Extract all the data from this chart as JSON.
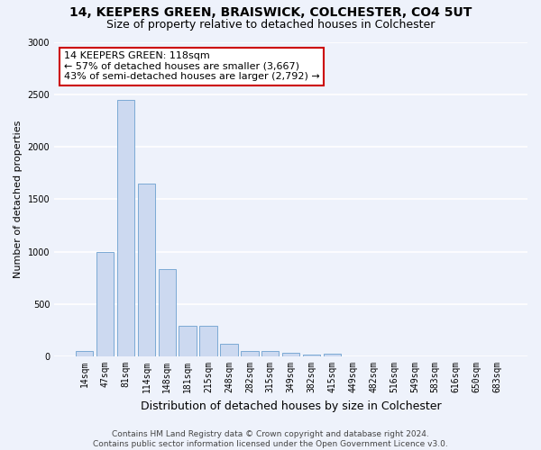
{
  "title_line1": "14, KEEPERS GREEN, BRAISWICK, COLCHESTER, CO4 5UT",
  "title_line2": "Size of property relative to detached houses in Colchester",
  "xlabel": "Distribution of detached houses by size in Colchester",
  "ylabel": "Number of detached properties",
  "categories": [
    "14sqm",
    "47sqm",
    "81sqm",
    "114sqm",
    "148sqm",
    "181sqm",
    "215sqm",
    "248sqm",
    "282sqm",
    "315sqm",
    "349sqm",
    "382sqm",
    "415sqm",
    "449sqm",
    "482sqm",
    "516sqm",
    "549sqm",
    "583sqm",
    "616sqm",
    "650sqm",
    "683sqm"
  ],
  "values": [
    55,
    995,
    2450,
    1650,
    835,
    290,
    290,
    120,
    55,
    55,
    35,
    20,
    30,
    0,
    0,
    0,
    0,
    0,
    0,
    0,
    0
  ],
  "bar_color": "#ccd9f0",
  "bar_edge_color": "#7baad4",
  "annotation_title": "14 KEEPERS GREEN: 118sqm",
  "annotation_line2": "← 57% of detached houses are smaller (3,667)",
  "annotation_line3": "43% of semi-detached houses are larger (2,792) →",
  "annotation_box_color": "#ffffff",
  "annotation_box_edge_color": "#cc0000",
  "ylim": [
    0,
    3000
  ],
  "yticks": [
    0,
    500,
    1000,
    1500,
    2000,
    2500,
    3000
  ],
  "footer_line1": "Contains HM Land Registry data © Crown copyright and database right 2024.",
  "footer_line2": "Contains public sector information licensed under the Open Government Licence v3.0.",
  "background_color": "#eef2fb",
  "grid_color": "#ffffff",
  "title_fontsize": 10,
  "subtitle_fontsize": 9,
  "ylabel_fontsize": 8,
  "xlabel_fontsize": 9,
  "tick_fontsize": 7,
  "annotation_fontsize": 8,
  "footer_fontsize": 6.5
}
